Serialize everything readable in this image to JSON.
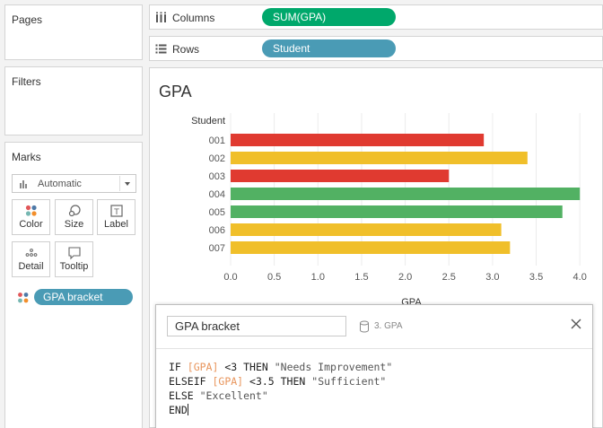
{
  "left_panel": {
    "pages_title": "Pages",
    "filters_title": "Filters",
    "marks_title": "Marks",
    "mark_type": "Automatic",
    "mark_buttons": [
      {
        "label": "Color",
        "icon": "color-icon"
      },
      {
        "label": "Size",
        "icon": "size-icon"
      },
      {
        "label": "Label",
        "icon": "label-icon"
      },
      {
        "label": "Detail",
        "icon": "detail-icon"
      },
      {
        "label": "Tooltip",
        "icon": "tooltip-icon"
      }
    ],
    "color_pill": "GPA bracket"
  },
  "shelves": {
    "columns_label": "Columns",
    "columns_pill": "SUM(GPA)",
    "rows_label": "Rows",
    "rows_pill": "Student"
  },
  "view": {
    "title": "GPA"
  },
  "colors": {
    "needs_improvement": "#e03a30",
    "sufficient": "#f0bf2a",
    "excellent": "#52b163",
    "pill_measure": "#00a86b",
    "pill_dimension": "#4a9bb5"
  },
  "chart_data": {
    "type": "bar",
    "orientation": "horizontal",
    "row_header": "Student",
    "xlabel": "GPA",
    "xlim": [
      0,
      4.1
    ],
    "x_ticks": [
      "0.0",
      "0.5",
      "1.0",
      "1.5",
      "2.0",
      "2.5",
      "3.0",
      "3.5",
      "4.0"
    ],
    "categories": [
      "001",
      "002",
      "003",
      "004",
      "005",
      "006",
      "007"
    ],
    "values": [
      2.9,
      3.4,
      2.5,
      4.0,
      3.8,
      3.1,
      3.2
    ],
    "brackets": [
      "Needs Improvement",
      "Sufficient",
      "Needs Improvement",
      "Excellent",
      "Excellent",
      "Sufficient",
      "Sufficient"
    ],
    "grid": true
  },
  "calc": {
    "name": "GPA bracket",
    "source": "3. GPA",
    "lines": [
      [
        {
          "t": "IF ",
          "c": "kw"
        },
        {
          "t": "[GPA]",
          "c": "fld"
        },
        {
          "t": " <3 THEN ",
          "c": "kw"
        },
        {
          "t": "\"Needs Improvement\"",
          "c": "str"
        }
      ],
      [
        {
          "t": "ELSEIF ",
          "c": "kw"
        },
        {
          "t": "[GPA]",
          "c": "fld"
        },
        {
          "t": " <3.5 THEN ",
          "c": "kw"
        },
        {
          "t": "\"Sufficient\"",
          "c": "str"
        }
      ],
      [
        {
          "t": "ELSE ",
          "c": "kw"
        },
        {
          "t": "\"Excellent\"",
          "c": "str"
        }
      ],
      [
        {
          "t": "END",
          "c": "kw"
        }
      ]
    ]
  }
}
